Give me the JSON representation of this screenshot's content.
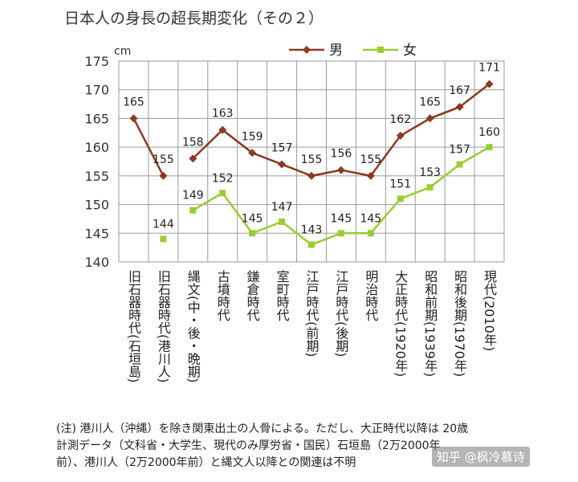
{
  "chart_data": {
    "type": "line",
    "title": "日本人の身長の超長期変化（その２）",
    "ylabel": "cm",
    "xlabel": "",
    "ylim": [
      140,
      175
    ],
    "yticks": [
      140,
      145,
      150,
      155,
      160,
      165,
      170,
      175
    ],
    "grid": true,
    "legend_position": "top-right",
    "categories": [
      "旧石器時代(石垣島)",
      "旧石器時代(港川人)",
      "縄文(中・後・晩期)",
      "古墳時代",
      "鎌倉時代",
      "室町時代",
      "江戸時代(前期)",
      "江戸時代(後期)",
      "明治時代",
      "大正時代(1920年)",
      "昭和前期(1939年)",
      "昭和後期(1970年)",
      "現代(2010年)"
    ],
    "series": [
      {
        "name": "男",
        "color": "#8b3a1e",
        "marker": "diamond",
        "values": [
          165,
          155,
          158,
          163,
          159,
          157,
          155,
          156,
          155,
          162,
          165,
          167,
          171
        ],
        "value_labels": [
          "165",
          "155",
          "158",
          "163",
          "159",
          "157",
          "155",
          "156",
          "155",
          "162",
          "165",
          "167",
          "171"
        ],
        "connect_from_index": 0,
        "gap_after_index": 1
      },
      {
        "name": "女",
        "color": "#9acd32",
        "marker": "square",
        "values": [
          null,
          144,
          149,
          152,
          145,
          147,
          143,
          145,
          145,
          151,
          153,
          157,
          160
        ],
        "value_labels": [
          null,
          "144",
          "149",
          "152",
          "145",
          "147",
          "143",
          "145",
          "145",
          "151",
          "153",
          "157",
          "160"
        ],
        "gap_after_index": 1
      }
    ]
  },
  "footnote": {
    "lines": [
      "(注) 港川人（沖縄）を除き関東出土の人骨による。ただし、大正時代以降は 20歳",
      "計測データ（文科省・大学生、現代のみ厚労省・国民）石垣島（2万2000年",
      "前）、港川人（2万2000年前）と縄文人以降との関連は不明"
    ]
  },
  "watermark": "知乎 @枫冷慕诗"
}
